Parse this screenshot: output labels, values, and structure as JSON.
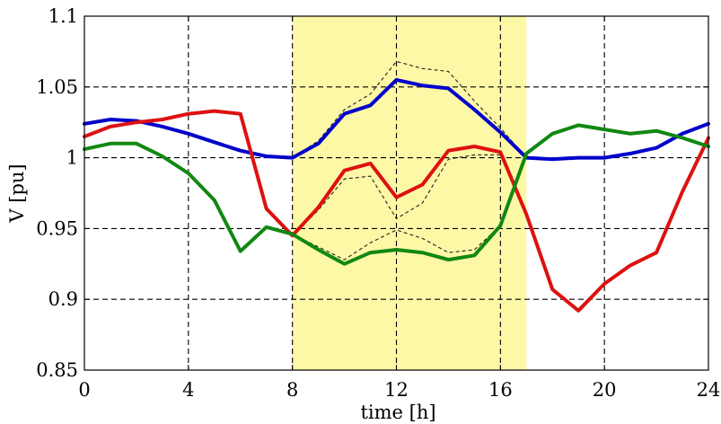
{
  "chart_data": {
    "type": "line",
    "title": "",
    "xlabel": "time [h]",
    "ylabel": "V [pu]",
    "xlim": [
      0,
      24
    ],
    "ylim": [
      0.85,
      1.1
    ],
    "xticks": [
      0,
      4,
      8,
      12,
      16,
      20,
      24
    ],
    "yticks": [
      0.85,
      0.9,
      0.95,
      1,
      1.05,
      1.1
    ],
    "xtick_labels": [
      "0",
      "4",
      "8",
      "12",
      "16",
      "20",
      "24"
    ],
    "ytick_labels": [
      "0.85",
      "0.9",
      "0.95",
      "1",
      "1.05",
      "1.1"
    ],
    "grid": true,
    "grid_style": "dashed",
    "highlight": {
      "x_range": [
        8,
        17
      ],
      "color": "#fdf8a6"
    },
    "series": [
      {
        "color": "#0000cc",
        "style": "solid",
        "x": [
          0,
          1,
          2,
          3,
          4,
          5,
          6,
          7,
          8,
          9,
          10,
          11,
          12,
          13,
          14,
          15,
          16,
          17,
          18,
          19,
          20,
          21,
          22,
          23,
          24
        ],
        "y": [
          1.024,
          1.027,
          1.026,
          1.022,
          1.017,
          1.011,
          1.005,
          1.001,
          1.0,
          1.01,
          1.031,
          1.037,
          1.055,
          1.051,
          1.049,
          1.034,
          1.018,
          1.0,
          0.999,
          1.0,
          1.0,
          1.003,
          1.007,
          1.017,
          1.024
        ]
      },
      {
        "color": "#dd1111",
        "style": "solid",
        "x": [
          0,
          1,
          2,
          3,
          4,
          5,
          6,
          7,
          8,
          9,
          10,
          11,
          12,
          13,
          14,
          15,
          16,
          17,
          18,
          19,
          20,
          21,
          22,
          23,
          24
        ],
        "y": [
          1.015,
          1.022,
          1.025,
          1.027,
          1.031,
          1.033,
          1.031,
          0.964,
          0.945,
          0.965,
          0.991,
          0.996,
          0.972,
          0.981,
          1.005,
          1.008,
          1.004,
          0.96,
          0.907,
          0.892,
          0.911,
          0.924,
          0.933,
          0.976,
          1.014
        ]
      },
      {
        "color": "#118811",
        "style": "solid",
        "x": [
          0,
          1,
          2,
          3,
          4,
          5,
          6,
          7,
          8,
          9,
          10,
          11,
          12,
          13,
          14,
          15,
          16,
          17,
          18,
          19,
          20,
          21,
          22,
          23,
          24
        ],
        "y": [
          1.006,
          1.01,
          1.01,
          1.001,
          0.989,
          0.97,
          0.934,
          0.951,
          0.946,
          0.935,
          0.925,
          0.933,
          0.935,
          0.933,
          0.928,
          0.931,
          0.952,
          1.003,
          1.017,
          1.023,
          1.02,
          1.017,
          1.019,
          1.014,
          1.008
        ]
      },
      {
        "color": "#222222",
        "style": "dashed",
        "x": [
          8,
          9,
          10,
          11,
          12,
          13,
          14,
          15,
          16,
          17
        ],
        "y": [
          1.0,
          1.012,
          1.034,
          1.045,
          1.068,
          1.063,
          1.061,
          1.04,
          1.021,
          1.0
        ]
      },
      {
        "color": "#222222",
        "style": "dashed",
        "x": [
          8,
          9,
          10,
          11,
          12,
          13,
          14,
          15,
          16,
          17
        ],
        "y": [
          0.945,
          0.963,
          0.985,
          0.987,
          0.957,
          0.968,
          0.999,
          1.002,
          1.002,
          0.96
        ]
      },
      {
        "color": "#222222",
        "style": "dashed",
        "x": [
          8,
          9,
          10,
          11,
          12,
          13,
          14,
          15,
          16,
          17
        ],
        "y": [
          0.946,
          0.937,
          0.928,
          0.94,
          0.949,
          0.943,
          0.933,
          0.935,
          0.952,
          1.003
        ]
      }
    ]
  }
}
